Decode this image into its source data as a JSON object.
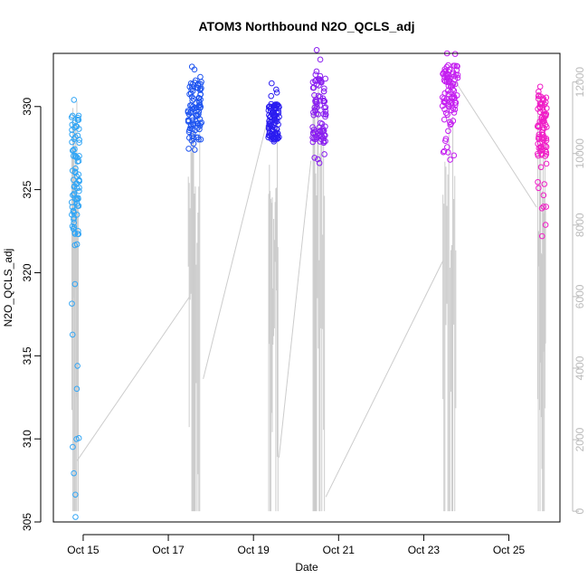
{
  "chart_data": {
    "type": "scatter",
    "title": "ATOM3 Northbound N2O_QCLS_adj",
    "xlabel": "Date",
    "ylabel": "N2O_QCLS_adj",
    "x_ticks": [
      "Oct 15",
      "Oct 17",
      "Oct 19",
      "Oct 21",
      "Oct 23",
      "Oct 25"
    ],
    "x_tick_days": [
      15,
      17,
      19,
      21,
      23,
      25
    ],
    "xlim": [
      14.3,
      26.2
    ],
    "ylim": [
      305,
      333.2
    ],
    "y_ticks": [
      305,
      310,
      315,
      320,
      325,
      330
    ],
    "y2_ticks": [
      0,
      2000,
      4000,
      6000,
      8000,
      10000,
      12000
    ],
    "y2lim": [
      -300,
      12800
    ],
    "y2_color": "#bbbbbb",
    "grid": false,
    "point_colors": [
      "#33a6f5",
      "#1f55f0",
      "#2b1df0",
      "#8a1ff0",
      "#c41ef0",
      "#f01ec7"
    ],
    "flights": [
      {
        "center": 14.82,
        "width": 0.18,
        "ymin": 305.3,
        "ymax": 330.4,
        "bulk": [
          322,
          329.5
        ],
        "alt_max": 11900,
        "color": "#33a6f5"
      },
      {
        "center": 17.62,
        "width": 0.32,
        "ymin": 327.4,
        "ymax": 332.4,
        "bulk": [
          328,
          331.5
        ],
        "alt_max": 12300,
        "color": "#1f55f0"
      },
      {
        "center": 19.48,
        "width": 0.26,
        "ymin": 327.9,
        "ymax": 331.4,
        "bulk": [
          328,
          330.2
        ],
        "alt_max": 11200,
        "color": "#2b1df0"
      },
      {
        "center": 20.55,
        "width": 0.32,
        "ymin": 326.6,
        "ymax": 333.4,
        "bulk": [
          327.8,
          331.8
        ],
        "alt_max": 12700,
        "color": "#8a1ff0"
      },
      {
        "center": 23.62,
        "width": 0.36,
        "ymin": 326.8,
        "ymax": 333.2,
        "bulk": [
          329.5,
          332.5
        ],
        "alt_max": 12300,
        "color": "#c41ef0"
      },
      {
        "center": 25.78,
        "width": 0.22,
        "ymin": 322.2,
        "ymax": 331.2,
        "bulk": [
          327,
          330.8
        ],
        "alt_max": 11800,
        "color": "#f01ec7"
      }
    ],
    "altitude_transits": [
      [
        [
          14.85,
          1400
        ],
        [
          17.5,
          6000
        ]
      ],
      [
        [
          17.82,
          3700
        ],
        [
          19.3,
          10800
        ]
      ],
      [
        [
          19.6,
          1500
        ],
        [
          20.35,
          9800
        ]
      ],
      [
        [
          20.7,
          400
        ],
        [
          23.45,
          7000
        ]
      ],
      [
        [
          23.75,
          12000
        ],
        [
          25.65,
          8500
        ]
      ]
    ]
  }
}
